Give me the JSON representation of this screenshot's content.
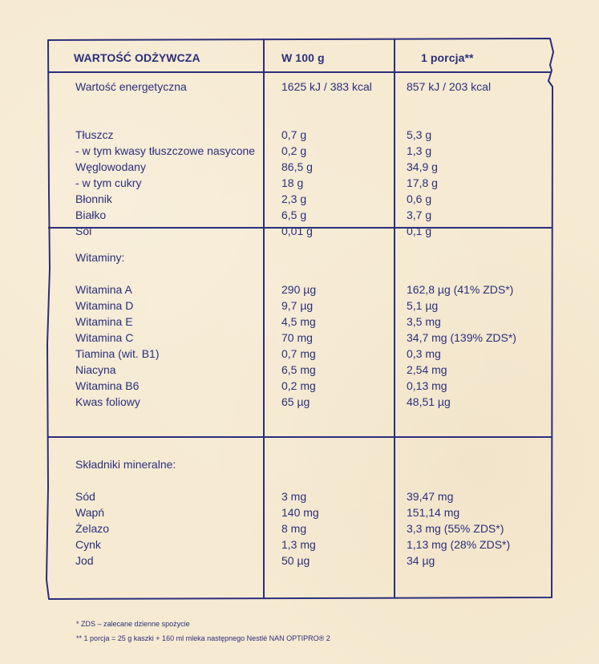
{
  "table": {
    "headers": {
      "nutrition": "WARTOŚĆ ODŻYWCZA",
      "per100": "W 100 g",
      "portion": "1 porcja**"
    },
    "energy": {
      "label": "Wartość energetyczna",
      "per100": "1625 kJ / 383 kcal",
      "portion": "857 kJ / 203 kcal"
    },
    "macros": [
      {
        "label": "Tłuszcz",
        "per100": "0,7 g",
        "portion": "5,3 g"
      },
      {
        "label": "- w tym kwasy tłuszczowe nasycone",
        "per100": "0,2 g",
        "portion": "1,3 g"
      },
      {
        "label": "Węglowodany",
        "per100": "86,5 g",
        "portion": "34,9 g"
      },
      {
        "label": "- w tym cukry",
        "per100": "18 g",
        "portion": "17,8 g"
      },
      {
        "label": "Błonnik",
        "per100": "2,3 g",
        "portion": "0,6 g"
      },
      {
        "label": "Białko",
        "per100": "6,5 g",
        "portion": "3,7 g"
      },
      {
        "label": "Sól",
        "per100": "0,01 g",
        "portion": "0,1 g"
      }
    ],
    "vitamins_title": "Witaminy:",
    "vitamins": [
      {
        "label": "Witamina A",
        "per100": "290 µg",
        "portion": "162,8 µg (41% ZDS*)"
      },
      {
        "label": "Witamina D",
        "per100": "9,7 µg",
        "portion": "5,1 µg"
      },
      {
        "label": "Witamina E",
        "per100": "4,5 mg",
        "portion": "3,5 mg"
      },
      {
        "label": "Witamina C",
        "per100": "70 mg",
        "portion": "34,7 mg (139% ZDS*)"
      },
      {
        "label": "Tiamina (wit. B1)",
        "per100": "0,7 mg",
        "portion": "0,3 mg"
      },
      {
        "label": "Niacyna",
        "per100": "6,5 mg",
        "portion": "2,54 mg"
      },
      {
        "label": "Witamina B6",
        "per100": "0,2 mg",
        "portion": "0,13 mg"
      },
      {
        "label": "Kwas foliowy",
        "per100": "65 µg",
        "portion": "48,51 µg"
      }
    ],
    "minerals_title": "Składniki mineralne:",
    "minerals": [
      {
        "label": "Sód",
        "per100": "3 mg",
        "portion": "39,47 mg"
      },
      {
        "label": "Wapń",
        "per100": "140 mg",
        "portion": "151,14 mg"
      },
      {
        "label": "Żelazo",
        "per100": "8 mg",
        "portion": "3,3 mg (55% ZDS*)"
      },
      {
        "label": "Cynk",
        "per100": "1,3 mg",
        "portion": "1,13 mg (28% ZDS*)"
      },
      {
        "label": "Jod",
        "per100": "50 µg",
        "portion": "34 µg"
      }
    ]
  },
  "footnotes": {
    "zds": "* ZDS – zalecane dzienne spożycie",
    "portion": "** 1 porcja = 25 g kaszki + 160 ml mleka następnego Nestlé NAN OPTIPRO® 2"
  },
  "colors": {
    "background": "#f6ead2",
    "ink": "#2b2f7a"
  }
}
